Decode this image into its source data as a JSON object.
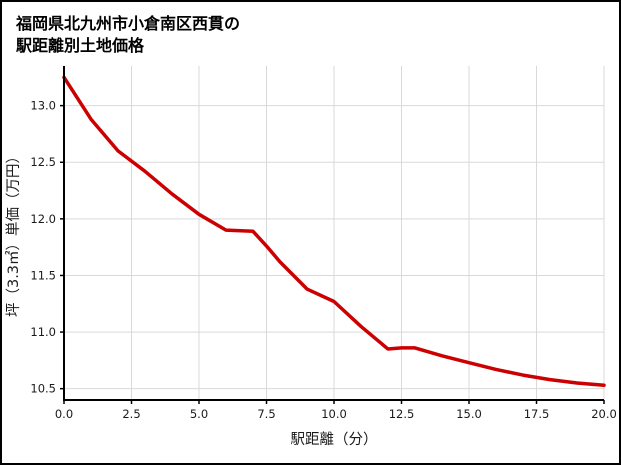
{
  "title_line1": "福岡県北九州市小倉南区西貫の",
  "title_line2": "駅距離別土地価格",
  "chart_data": {
    "type": "line",
    "title": "福岡県北九州市小倉南区西貫の駅距離別土地価格",
    "xlabel": "駅距離（分）",
    "ylabel": "坪（3.3㎡）単価（万円）",
    "xlim": [
      0,
      20
    ],
    "ylim": [
      10.4,
      13.35
    ],
    "xticks": [
      0,
      2.5,
      5,
      7.5,
      10,
      12.5,
      15,
      17.5,
      20
    ],
    "xtick_labels": [
      "0.0",
      "2.5",
      "5.0",
      "7.5",
      "10.0",
      "12.5",
      "15.0",
      "17.5",
      "20.0"
    ],
    "yticks": [
      10.5,
      11.0,
      11.5,
      12.0,
      12.5,
      13.0
    ],
    "ytick_labels": [
      "10.5",
      "11.0",
      "11.5",
      "12.0",
      "12.5",
      "13.0"
    ],
    "grid": true,
    "legend_position": "none",
    "line_color": "#cc0000",
    "grid_color": "#d9d9d9",
    "axis_color": "#000000",
    "series": [
      {
        "name": "駅距離別土地価格",
        "x": [
          0,
          1,
          2,
          3,
          4,
          5,
          6,
          7,
          7.5,
          8,
          9,
          10,
          11,
          12,
          12.5,
          13,
          14,
          15,
          16,
          17,
          18,
          19,
          20
        ],
        "y": [
          13.25,
          12.88,
          12.6,
          12.42,
          12.22,
          12.04,
          11.9,
          11.89,
          11.76,
          11.62,
          11.38,
          11.27,
          11.05,
          10.85,
          10.86,
          10.86,
          10.79,
          10.73,
          10.67,
          10.62,
          10.58,
          10.55,
          10.53
        ]
      }
    ]
  }
}
